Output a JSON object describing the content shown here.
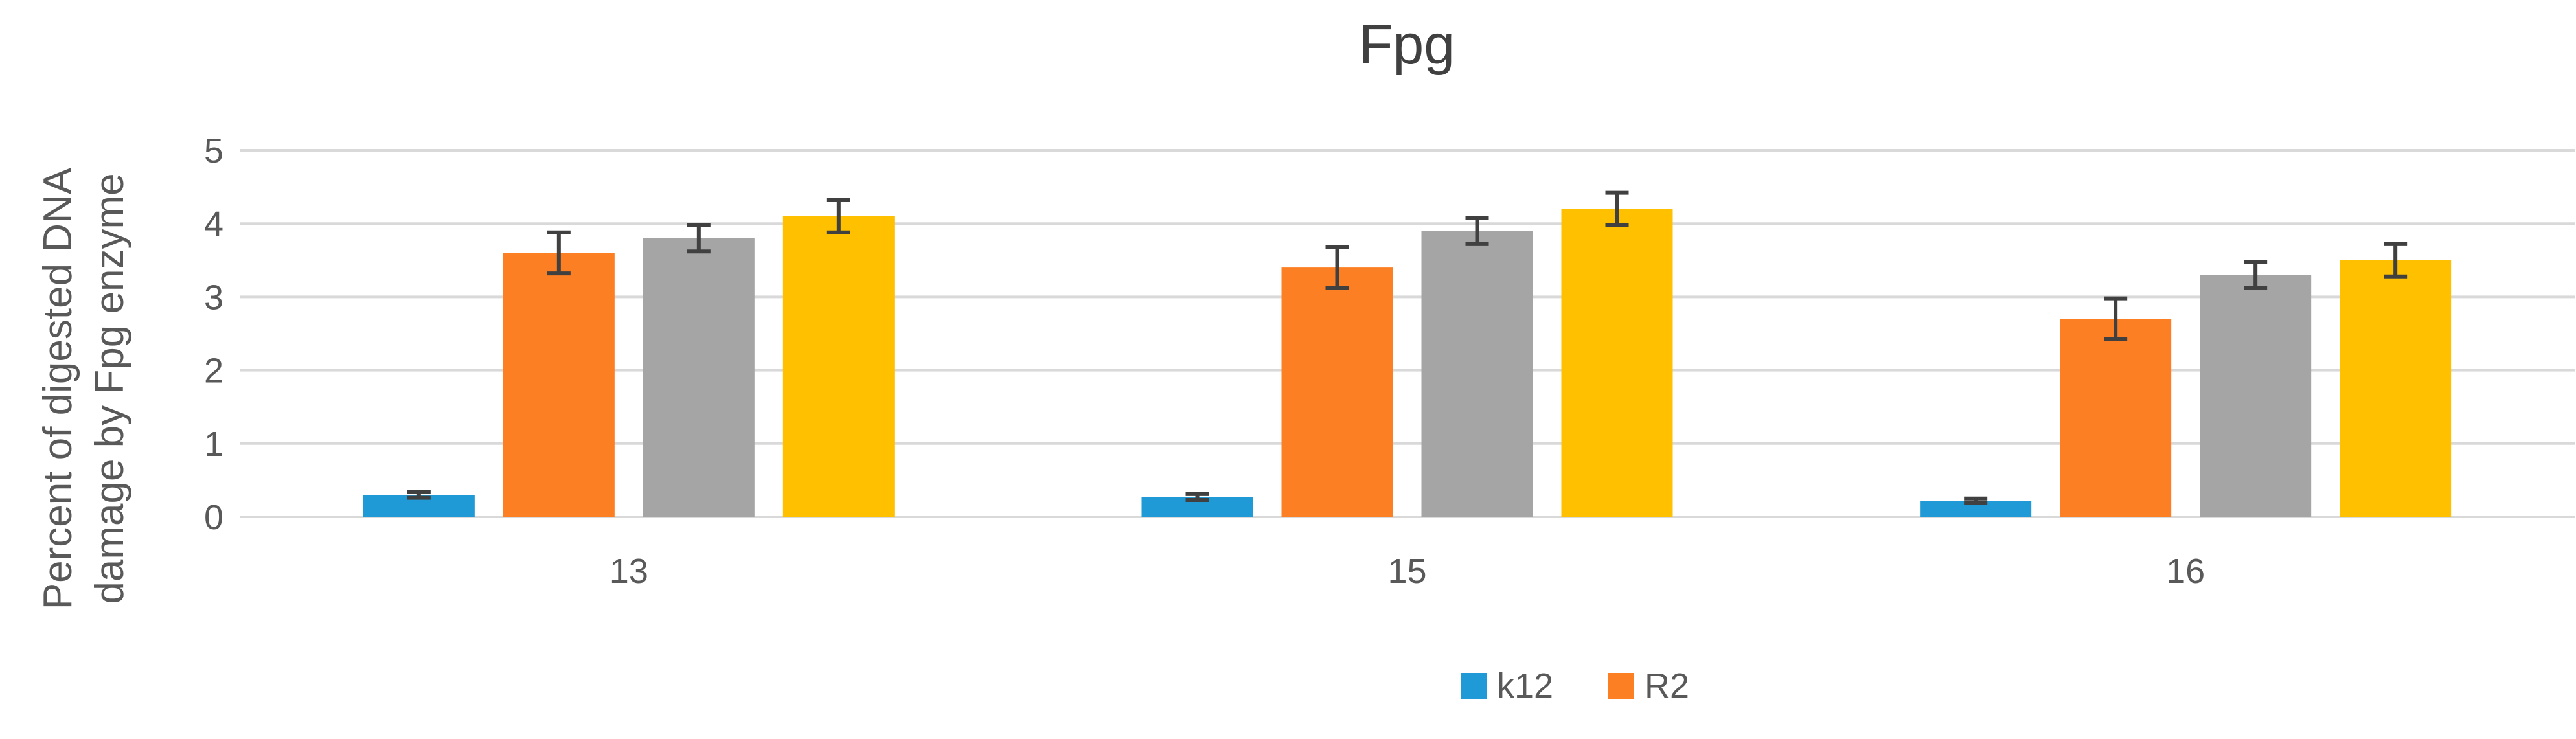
{
  "chart_data": {
    "type": "bar",
    "title": "Fpg",
    "ylabel_lines": [
      "Percent of digested DNA",
      "damage by Fpg enzyme"
    ],
    "xlabel": "",
    "categories": [
      "13",
      "15",
      "16"
    ],
    "ylim": [
      0,
      5
    ],
    "yticks": [
      0,
      1,
      2,
      3,
      4,
      5
    ],
    "grid": true,
    "legend_position": "bottom-center",
    "series": [
      {
        "name": "k12",
        "color": "#1f9ad6",
        "values": [
          0.3,
          0.27,
          0.22
        ],
        "errors": [
          0.04,
          0.04,
          0.03
        ]
      },
      {
        "name": "R2",
        "color": "#fd7f23",
        "values": [
          3.6,
          3.4,
          2.7
        ],
        "errors": [
          0.28,
          0.28,
          0.28
        ]
      },
      {
        "name": "",
        "color": "#a5a5a5",
        "values": [
          3.8,
          3.9,
          3.3
        ],
        "errors": [
          0.18,
          0.18,
          0.18
        ]
      },
      {
        "name": "",
        "color": "#ffc000",
        "values": [
          4.1,
          4.2,
          3.5
        ],
        "errors": [
          0.22,
          0.22,
          0.22
        ]
      }
    ]
  }
}
